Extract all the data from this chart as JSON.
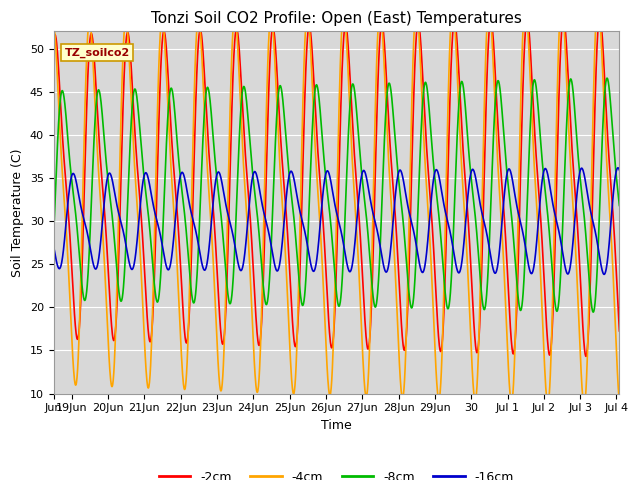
{
  "title": "Tonzi Soil CO2 Profile: Open (East) Temperatures",
  "xlabel": "Time",
  "ylabel": "Soil Temperature (C)",
  "ylim": [
    10,
    52
  ],
  "yticks": [
    10,
    15,
    20,
    25,
    30,
    35,
    40,
    45,
    50
  ],
  "bg_color": "#d8d8d8",
  "legend_label": "TZ_soilco2",
  "series": [
    {
      "label": "-2cm",
      "color": "#ff0000",
      "amp": 16.0,
      "mean": 34.0,
      "phase": 0.05,
      "min_clip": 18,
      "max_clip": 51
    },
    {
      "label": "-4cm",
      "color": "#ffa500",
      "amp": 19.0,
      "mean": 32.0,
      "phase": 0.0,
      "min_clip": 13,
      "max_clip": 51
    },
    {
      "label": "-8cm",
      "color": "#00bb00",
      "amp": 11.0,
      "mean": 33.0,
      "phase": 0.25,
      "min_clip": 19,
      "max_clip": 48
    },
    {
      "label": "-16cm",
      "color": "#0000cc",
      "amp": 5.0,
      "mean": 30.0,
      "phase": 0.55,
      "min_clip": 24,
      "max_clip": 38
    }
  ],
  "start_day": 18.5,
  "end_day": 34.08,
  "n_points": 2000,
  "period": 1.0,
  "title_fontsize": 11,
  "tick_label_fontsize": 8,
  "axis_label_fontsize": 9,
  "legend_fontsize": 9,
  "xtick_positions": [
    18.5,
    19,
    20,
    21,
    22,
    23,
    24,
    25,
    26,
    27,
    28,
    29,
    30,
    31,
    32,
    33,
    34
  ],
  "xtick_labels": [
    "Jun",
    "19Jun",
    "20Jun",
    "21Jun",
    "22Jun",
    "23Jun",
    "24Jun",
    "25Jun",
    "26Jun",
    "27Jun",
    "28Jun",
    "29Jun",
    "30",
    "Jul 1",
    "Jul 2",
    "Jul 3",
    "Jul 4"
  ]
}
